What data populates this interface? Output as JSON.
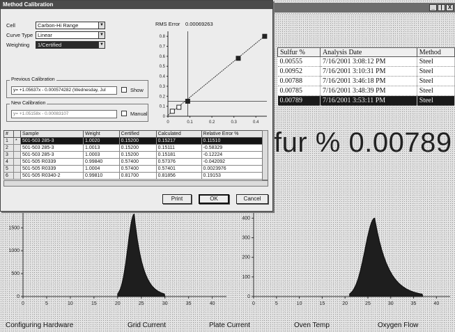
{
  "main": {
    "title_buttons": [
      "_",
      "|",
      "X"
    ],
    "results": {
      "columns": [
        "Sulfur %",
        "Analysis Date",
        "Method"
      ],
      "rows": [
        {
          "sulfur": "0.00555",
          "date": "7/16/2001 3:08:12 PM",
          "method": "Steel"
        },
        {
          "sulfur": "0.00952",
          "date": "7/16/2001 3:10:31 PM",
          "method": "Steel"
        },
        {
          "sulfur": "0.00788",
          "date": "7/16/2001 3:46:18 PM",
          "method": "Steel"
        },
        {
          "sulfur": "0.00785",
          "date": "7/16/2001 3:48:39 PM",
          "method": "Steel"
        },
        {
          "sulfur": "0.00789",
          "date": "7/16/2001 3:53:11 PM",
          "method": "Steel"
        }
      ],
      "selected_index": 4
    },
    "big_readout": "fur % 0.00789",
    "status_bar": [
      "Configuring Hardware",
      "Grid Current",
      "Plate Current",
      "Oven Temp",
      "Oxygen Flow"
    ]
  },
  "dialog": {
    "title": "Method Calibration",
    "cell_label": "Cell",
    "cell_value": "Carbon-Hi Range",
    "curve_type_label": "Curve Type",
    "curve_type_value": "Linear",
    "weighting_label": "Weighting",
    "weighting_value": "1/Certified",
    "rms_label": "RMS Error",
    "rms_value": "0.00069263",
    "previous_group": "Previous Calibration",
    "previous_formula": "y= +1.05637x - 0.000574282 (Wednesday, Jul",
    "show_label": "Show",
    "new_group": "New Calibration",
    "new_formula": "y= +1.05158x - 0.00083107",
    "manual_label": "Manual",
    "grid_columns": [
      "#",
      "Sample",
      "Weight",
      "Certified",
      "Calculated",
      "Relative Error %"
    ],
    "grid_rows": [
      {
        "n": "1",
        "mark": "*",
        "sample": "501-503 285-3",
        "weight": "1.0020",
        "certified": "0.15200",
        "calculated": "0.15217",
        "error": "0.11510"
      },
      {
        "n": "2",
        "mark": "",
        "sample": "501-503 285-3",
        "weight": "1.0013",
        "certified": "0.15200",
        "calculated": "0.15111",
        "error": "-0.58329"
      },
      {
        "n": "3",
        "mark": "",
        "sample": "501-503 285-3",
        "weight": "1.0003",
        "certified": "0.15200",
        "calculated": "0.15181",
        "error": "-0.12224"
      },
      {
        "n": "4",
        "mark": "",
        "sample": "501-505 R0339",
        "weight": "0.99840",
        "certified": "0.57400",
        "calculated": "0.57376",
        "error": "-0.042092"
      },
      {
        "n": "5",
        "mark": "",
        "sample": "501-505 R0339",
        "weight": "1.0004",
        "certified": "0.57400",
        "calculated": "0.57401",
        "error": "0.0023976"
      },
      {
        "n": "6",
        "mark": "",
        "sample": "501-505 R0340-2",
        "weight": "0.99810",
        "certified": "0.81700",
        "calculated": "0.81856",
        "error": "0.19153"
      }
    ],
    "selected_grid_index": 0,
    "print_label": "Print",
    "ok_label": "OK",
    "cancel_label": "Cancel"
  },
  "chart_data": [
    {
      "type": "scatter",
      "name": "calibration-plot",
      "x_ticks": [
        "0",
        "0.1",
        "0.2",
        "0.3",
        "0.4"
      ],
      "y_ticks": [
        "0",
        "0.1",
        "0.2",
        "0.3",
        "0.4",
        "0.5",
        "0.6",
        "0.7",
        "0.8"
      ],
      "xlim": [
        0,
        0.45
      ],
      "ylim": [
        0,
        0.85
      ],
      "points": [
        [
          0.02,
          0.05
        ],
        [
          0.05,
          0.09
        ],
        [
          0.09,
          0.15
        ],
        [
          0.32,
          0.58
        ],
        [
          0.44,
          0.8
        ]
      ],
      "fit_line": [
        [
          0,
          0.01
        ],
        [
          0.45,
          0.82
        ]
      ]
    },
    {
      "type": "area",
      "name": "left-peak-plot",
      "x_ticks": [
        "0",
        "5",
        "10",
        "15",
        "20",
        "25",
        "30",
        "35",
        "40"
      ],
      "y_ticks": [
        "0",
        "500",
        "1000",
        "1500"
      ],
      "xlim": [
        0,
        43
      ],
      "ylim": [
        0,
        1900
      ],
      "peak": {
        "start": 20,
        "center": 23.5,
        "height": 1800,
        "end": 30
      }
    },
    {
      "type": "area",
      "name": "right-peak-plot",
      "x_ticks": [
        "0",
        "5",
        "10",
        "15",
        "20",
        "25",
        "30",
        "35",
        "40"
      ],
      "y_ticks": [
        "0",
        "100",
        "200",
        "300",
        "400"
      ],
      "xlim": [
        0,
        43
      ],
      "ylim": [
        0,
        430
      ],
      "peak": {
        "start": 21,
        "center": 26.5,
        "height": 400,
        "end": 37
      }
    }
  ]
}
